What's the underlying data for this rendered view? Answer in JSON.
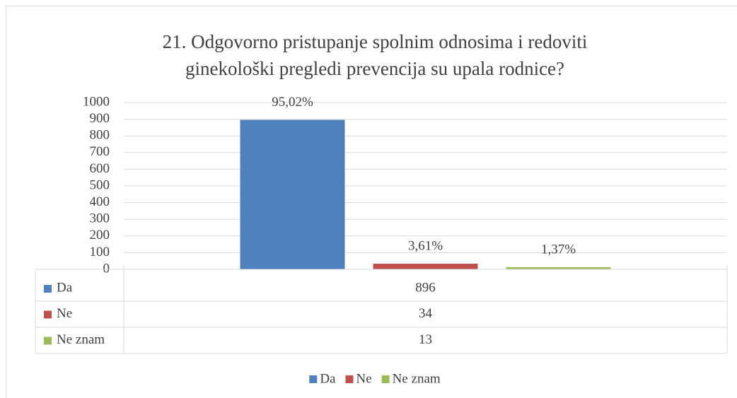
{
  "chart_data": {
    "type": "bar",
    "title": [
      "21. Odgovorno pristupanje spolnim odnosima i redoviti",
      "ginekološki pregledi prevencija su upala rodnice?"
    ],
    "categories": [
      null
    ],
    "series": [
      {
        "name": "Da",
        "color": "#4f81bd",
        "values": [
          896
        ],
        "data_label": "95,02%"
      },
      {
        "name": "Ne",
        "color": "#c0504d",
        "values": [
          34
        ],
        "data_label": "3,61%"
      },
      {
        "name": "Ne znam",
        "color": "#9bbb59",
        "values": [
          13
        ],
        "data_label": "1,37%"
      }
    ],
    "ylim": [
      0,
      1000
    ],
    "yticks": [
      0,
      100,
      200,
      300,
      400,
      500,
      600,
      700,
      800,
      900,
      1000
    ],
    "grid": true,
    "data_table": true,
    "legend": "bottom"
  }
}
